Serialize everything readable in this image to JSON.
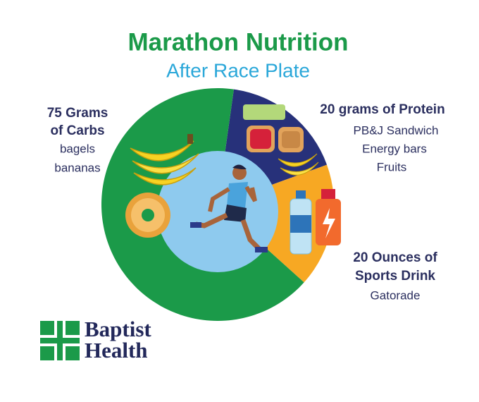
{
  "title": "Marathon Nutrition",
  "subtitle": "After Race Plate",
  "sections": [
    {
      "heading": [
        "75 Grams",
        "of Carbs"
      ],
      "items": [
        "bagels",
        "bananas"
      ]
    },
    {
      "heading": [
        "20 grams of Protein"
      ],
      "items": [
        "PB&J Sandwich",
        "Energy bars",
        "Fruits"
      ]
    },
    {
      "heading": [
        "20 Ounces of",
        "Sports Drink"
      ],
      "items": [
        "Gatorade"
      ]
    }
  ],
  "logo": {
    "lines": [
      "Baptist",
      "Health"
    ]
  }
}
